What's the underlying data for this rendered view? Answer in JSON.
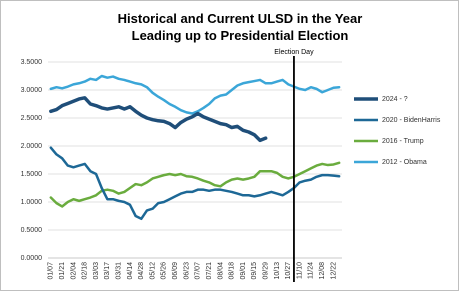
{
  "chart_data": {
    "type": "line",
    "title": "Historical and Current ULSD in the Year Leading up to Presidential Election",
    "categories": [
      "01/07",
      null,
      "01/21",
      null,
      "02/04",
      null,
      "02/18",
      null,
      "03/03",
      null,
      "03/17",
      null,
      "03/31",
      null,
      "04/14",
      null,
      "04/28",
      null,
      "05/12",
      null,
      "05/26",
      null,
      "06/09",
      null,
      "06/23",
      null,
      "07/07",
      null,
      "07/21",
      null,
      "08/04",
      null,
      "08/18",
      null,
      "09/01",
      null,
      "09/15",
      null,
      "09/29",
      null,
      "10/13",
      null,
      "10/27",
      null,
      "11/10",
      null,
      "11/24",
      null,
      "12/08",
      null,
      "12/22",
      null
    ],
    "series": [
      {
        "name": "2024 - ?",
        "color": "#1f4e79",
        "width": 3.5,
        "values": [
          2.62,
          2.65,
          2.72,
          2.76,
          2.8,
          2.84,
          2.86,
          2.75,
          2.72,
          2.68,
          2.66,
          2.68,
          2.7,
          2.66,
          2.7,
          2.62,
          2.55,
          2.5,
          2.47,
          2.45,
          2.44,
          2.4,
          2.33,
          2.42,
          2.48,
          2.52,
          2.58,
          2.52,
          2.48,
          2.44,
          2.4,
          2.38,
          2.33,
          2.35,
          2.28,
          2.25,
          2.2,
          2.1,
          2.14,
          null,
          null,
          null,
          null,
          null,
          null,
          null,
          null,
          null,
          null,
          null,
          null,
          null
        ]
      },
      {
        "name": "2020 - BidenHarris",
        "color": "#1d6896",
        "width": 2.5,
        "values": [
          1.97,
          1.85,
          1.78,
          1.65,
          1.62,
          1.65,
          1.68,
          1.55,
          1.5,
          1.25,
          1.05,
          1.05,
          1.02,
          1.0,
          0.95,
          0.75,
          0.7,
          0.85,
          0.88,
          0.98,
          1.0,
          1.05,
          1.1,
          1.15,
          1.18,
          1.18,
          1.22,
          1.22,
          1.2,
          1.22,
          1.22,
          1.2,
          1.18,
          1.15,
          1.12,
          1.12,
          1.1,
          1.12,
          1.15,
          1.18,
          1.15,
          1.12,
          1.18,
          1.25,
          1.35,
          1.38,
          1.4,
          1.45,
          1.48,
          1.48,
          1.47,
          1.46
        ]
      },
      {
        "name": "2016 - Trump",
        "color": "#6aac3e",
        "width": 2.5,
        "values": [
          1.08,
          0.98,
          0.92,
          1.0,
          1.05,
          1.02,
          1.05,
          1.08,
          1.12,
          1.2,
          1.22,
          1.2,
          1.15,
          1.18,
          1.25,
          1.32,
          1.3,
          1.35,
          1.42,
          1.45,
          1.48,
          1.5,
          1.48,
          1.5,
          1.46,
          1.45,
          1.42,
          1.38,
          1.35,
          1.3,
          1.28,
          1.35,
          1.4,
          1.42,
          1.4,
          1.42,
          1.45,
          1.55,
          1.55,
          1.55,
          1.52,
          1.45,
          1.42,
          1.45,
          1.5,
          1.55,
          1.6,
          1.65,
          1.68,
          1.66,
          1.67,
          1.7
        ]
      },
      {
        "name": "2012 - Obama",
        "color": "#3ba6d8",
        "width": 2.5,
        "values": [
          3.02,
          3.05,
          3.03,
          3.06,
          3.1,
          3.12,
          3.15,
          3.2,
          3.18,
          3.25,
          3.22,
          3.24,
          3.2,
          3.18,
          3.15,
          3.12,
          3.1,
          3.05,
          2.95,
          2.88,
          2.82,
          2.75,
          2.7,
          2.64,
          2.6,
          2.58,
          2.62,
          2.68,
          2.75,
          2.85,
          2.9,
          2.92,
          3.0,
          3.08,
          3.12,
          3.14,
          3.16,
          3.18,
          3.12,
          3.12,
          3.15,
          3.18,
          3.1,
          3.06,
          3.02,
          3.0,
          3.05,
          3.02,
          2.96,
          3.0,
          3.04,
          3.05
        ]
      }
    ],
    "ylim": [
      0,
      3.5
    ],
    "yticks": [
      {
        "value": 0,
        "label": "0.0000"
      },
      {
        "value": 0.5,
        "label": "0.5000"
      },
      {
        "value": 1,
        "label": "1.0000"
      },
      {
        "value": 1.5,
        "label": "1.5000"
      },
      {
        "value": 2,
        "label": "2.0000"
      },
      {
        "value": 2.5,
        "label": "2.5000"
      },
      {
        "value": 3,
        "label": "3.0000"
      },
      {
        "value": 3.5,
        "label": "3.5000"
      }
    ],
    "grid": true,
    "legend": "right",
    "annotation": {
      "text": "Election Day",
      "x": 43
    }
  }
}
